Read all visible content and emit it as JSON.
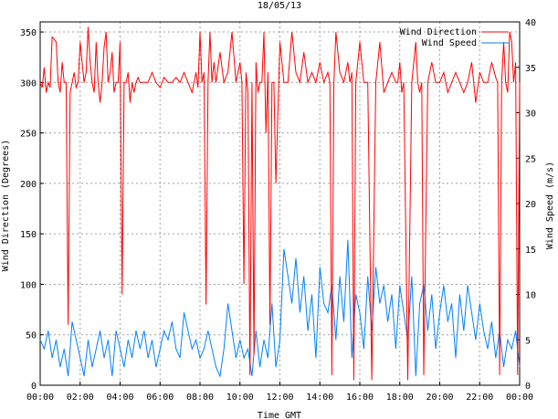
{
  "chart_data": {
    "type": "line",
    "title": "18/05/13",
    "xlabel": "Time GMT",
    "ylabel_left": "Wind Direction (Degrees)",
    "ylabel_right": "Wind Speed (m/s)",
    "x_ticks": [
      "00:00",
      "02:00",
      "04:00",
      "06:00",
      "08:00",
      "10:00",
      "12:00",
      "14:00",
      "16:00",
      "18:00",
      "20:00",
      "22:00",
      "00:00"
    ],
    "x_range_hours": [
      0,
      24
    ],
    "y_left_ticks": [
      0,
      50,
      100,
      150,
      200,
      250,
      300,
      350
    ],
    "y_left_range": [
      0,
      360
    ],
    "y_right_ticks": [
      0,
      5,
      10,
      15,
      20,
      25,
      30,
      35,
      40
    ],
    "y_right_range": [
      0,
      40
    ],
    "grid": true,
    "legend": "top-right",
    "colors": {
      "direction": "#ff0000",
      "speed": "#0080ff"
    },
    "series": [
      {
        "name": "Wind Direction",
        "axis": "left",
        "x": [
          0.0,
          0.1,
          0.2,
          0.3,
          0.4,
          0.5,
          0.6,
          0.7,
          0.8,
          0.9,
          1.0,
          1.1,
          1.2,
          1.3,
          1.4,
          1.5,
          1.6,
          1.7,
          1.8,
          1.9,
          2.0,
          2.1,
          2.2,
          2.3,
          2.4,
          2.5,
          2.6,
          2.7,
          2.8,
          2.9,
          3.0,
          3.1,
          3.2,
          3.3,
          3.4,
          3.5,
          3.6,
          3.7,
          3.8,
          3.9,
          4.0,
          4.1,
          4.2,
          4.3,
          4.4,
          4.5,
          4.6,
          4.7,
          4.8,
          4.9,
          5.0,
          5.2,
          5.4,
          5.6,
          5.8,
          6.0,
          6.2,
          6.4,
          6.6,
          6.8,
          7.0,
          7.2,
          7.4,
          7.6,
          7.8,
          7.9,
          8.0,
          8.1,
          8.2,
          8.3,
          8.4,
          8.5,
          8.6,
          8.7,
          8.8,
          9.0,
          9.2,
          9.4,
          9.6,
          9.8,
          10.0,
          10.1,
          10.2,
          10.3,
          10.4,
          10.5,
          10.6,
          10.7,
          10.8,
          10.9,
          11.0,
          11.1,
          11.2,
          11.3,
          11.4,
          11.5,
          11.6,
          11.7,
          11.8,
          12.0,
          12.2,
          12.4,
          12.6,
          12.8,
          13.0,
          13.2,
          13.4,
          13.6,
          13.8,
          14.0,
          14.2,
          14.4,
          14.5,
          14.6,
          14.7,
          14.8,
          15.0,
          15.2,
          15.4,
          15.5,
          15.6,
          15.7,
          15.8,
          16.0,
          16.2,
          16.4,
          16.6,
          16.8,
          17.0,
          17.2,
          17.4,
          17.6,
          17.8,
          17.9,
          18.0,
          18.1,
          18.2,
          18.4,
          18.6,
          18.8,
          18.9,
          19.0,
          19.1,
          19.2,
          19.4,
          19.6,
          19.8,
          20.0,
          20.2,
          20.4,
          20.6,
          20.8,
          21.0,
          21.2,
          21.4,
          21.6,
          21.8,
          22.0,
          22.2,
          22.4,
          22.6,
          22.8,
          22.9,
          23.0,
          23.1,
          23.2,
          23.3,
          23.4,
          23.5,
          23.6,
          23.7,
          23.8,
          23.9,
          24.0
        ],
        "values": [
          300,
          295,
          315,
          290,
          300,
          295,
          345,
          343,
          340,
          300,
          290,
          320,
          300,
          300,
          60,
          290,
          300,
          310,
          295,
          300,
          340,
          320,
          300,
          310,
          355,
          320,
          300,
          290,
          340,
          300,
          280,
          300,
          335,
          350,
          300,
          310,
          330,
          290,
          300,
          300,
          340,
          90,
          300,
          300,
          310,
          280,
          300,
          290,
          300,
          305,
          300,
          300,
          300,
          310,
          300,
          295,
          305,
          300,
          300,
          305,
          300,
          310,
          300,
          290,
          310,
          295,
          350,
          300,
          310,
          80,
          300,
          350,
          300,
          320,
          300,
          330,
          300,
          310,
          350,
          300,
          320,
          300,
          100,
          310,
          290,
          10,
          300,
          30,
          320,
          290,
          300,
          300,
          350,
          250,
          310,
          60,
          300,
          300,
          200,
          340,
          300,
          300,
          350,
          310,
          300,
          330,
          300,
          310,
          300,
          320,
          300,
          310,
          300,
          10,
          300,
          350,
          310,
          300,
          320,
          300,
          310,
          5,
          300,
          340,
          300,
          300,
          5,
          300,
          340,
          290,
          300,
          310,
          300,
          300,
          320,
          290,
          300,
          5,
          300,
          340,
          300,
          290,
          300,
          10,
          300,
          320,
          300,
          300,
          310,
          290,
          300,
          310,
          300,
          290,
          300,
          320,
          280,
          310,
          300,
          300,
          320,
          305,
          300,
          10,
          300,
          340,
          300,
          290,
          350,
          340,
          300,
          320,
          10,
          300
        ]
      },
      {
        "name": "Wind Speed",
        "axis": "right",
        "x": [
          0.0,
          0.2,
          0.4,
          0.6,
          0.8,
          1.0,
          1.2,
          1.4,
          1.6,
          1.8,
          2.0,
          2.2,
          2.4,
          2.6,
          2.8,
          3.0,
          3.2,
          3.4,
          3.6,
          3.8,
          4.0,
          4.2,
          4.4,
          4.6,
          4.8,
          5.0,
          5.2,
          5.4,
          5.6,
          5.8,
          6.0,
          6.2,
          6.4,
          6.6,
          6.8,
          7.0,
          7.2,
          7.4,
          7.6,
          7.8,
          8.0,
          8.2,
          8.4,
          8.6,
          8.8,
          9.0,
          9.2,
          9.4,
          9.6,
          9.8,
          10.0,
          10.2,
          10.4,
          10.6,
          10.8,
          11.0,
          11.2,
          11.4,
          11.6,
          11.8,
          12.0,
          12.2,
          12.4,
          12.6,
          12.8,
          13.0,
          13.2,
          13.4,
          13.6,
          13.8,
          14.0,
          14.2,
          14.4,
          14.6,
          14.8,
          15.0,
          15.2,
          15.4,
          15.6,
          15.8,
          16.0,
          16.2,
          16.4,
          16.6,
          16.8,
          17.0,
          17.2,
          17.4,
          17.6,
          17.8,
          18.0,
          18.2,
          18.4,
          18.6,
          18.8,
          19.0,
          19.2,
          19.4,
          19.6,
          19.8,
          20.0,
          20.2,
          20.4,
          20.6,
          20.8,
          21.0,
          21.2,
          21.4,
          21.6,
          21.8,
          22.0,
          22.2,
          22.4,
          22.6,
          22.8,
          23.0,
          23.2,
          23.4,
          23.6,
          23.8,
          24.0
        ],
        "values": [
          5,
          4,
          6,
          3,
          5,
          2,
          4,
          1,
          7,
          5,
          3,
          1,
          5,
          2,
          4,
          6,
          3,
          5,
          1,
          6,
          4,
          2,
          5,
          3,
          6,
          4,
          6,
          3,
          5,
          2,
          4,
          6,
          5,
          7,
          4,
          3,
          8,
          6,
          4,
          5,
          3,
          4,
          6,
          4,
          2,
          1,
          4,
          9,
          6,
          3,
          5,
          3,
          4,
          1,
          6,
          2,
          5,
          3,
          9,
          2,
          5,
          15,
          12,
          9,
          14,
          8,
          12,
          6,
          10,
          3,
          13,
          9,
          8,
          11,
          5,
          12,
          7,
          16,
          3,
          10,
          8,
          4,
          12,
          6,
          13,
          9,
          11,
          7,
          10,
          4,
          11,
          8,
          5,
          12,
          1,
          9,
          11,
          6,
          10,
          4,
          8,
          11,
          7,
          9,
          3,
          10,
          6,
          11,
          8,
          5,
          9,
          6,
          4,
          7,
          3,
          6,
          2,
          5,
          4,
          6,
          2
        ]
      }
    ]
  }
}
